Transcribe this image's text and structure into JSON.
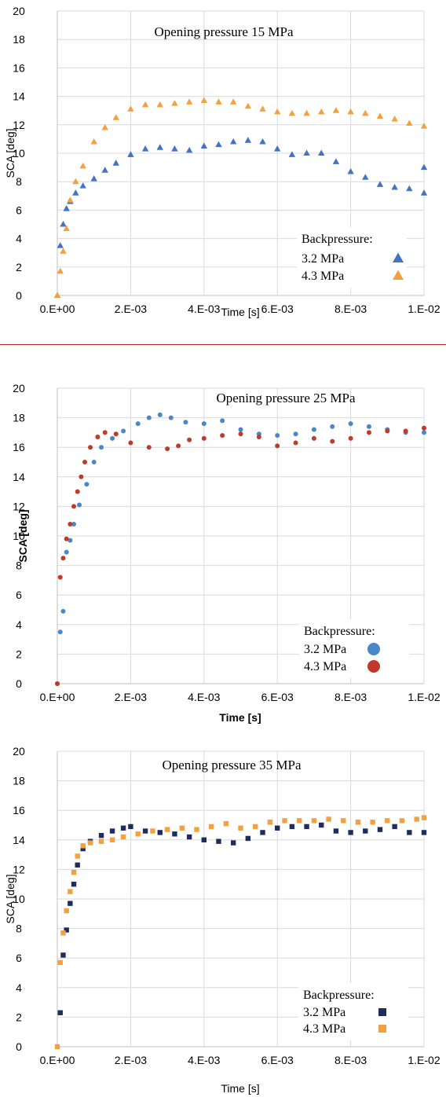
{
  "chart_data": [
    {
      "type": "scatter",
      "title": "Opening pressure 15 MPa",
      "xlabel": "Time [s]",
      "ylabel": "SCA [deg]",
      "label_bold": false,
      "marker": "triangle",
      "xlim": [
        0,
        0.01
      ],
      "ylim": [
        0,
        20
      ],
      "x_ticks": [
        "0.E+00",
        "2.E-03",
        "4.E-03",
        "6.E-03",
        "8.E-03",
        "1.E-02"
      ],
      "y_ticks": [
        "0",
        "2",
        "4",
        "6",
        "8",
        "10",
        "12",
        "14",
        "16",
        "18",
        "20"
      ],
      "grid": true,
      "legend": {
        "title": "Backpressure:",
        "placement": "bottom-right"
      },
      "series": [
        {
          "name": "3.2 MPa",
          "color": "#4472C4",
          "points": [
            [
              0,
              0
            ],
            [
              8e-05,
              3.5
            ],
            [
              0.00016,
              5.0
            ],
            [
              0.00025,
              6.1
            ],
            [
              0.00035,
              6.6
            ],
            [
              0.0005,
              7.2
            ],
            [
              0.0007,
              7.7
            ],
            [
              0.001,
              8.2
            ],
            [
              0.0013,
              8.8
            ],
            [
              0.0016,
              9.3
            ],
            [
              0.002,
              9.9
            ],
            [
              0.0024,
              10.3
            ],
            [
              0.0028,
              10.4
            ],
            [
              0.0032,
              10.3
            ],
            [
              0.0036,
              10.2
            ],
            [
              0.004,
              10.5
            ],
            [
              0.0044,
              10.6
            ],
            [
              0.0048,
              10.8
            ],
            [
              0.0052,
              10.9
            ],
            [
              0.0056,
              10.8
            ],
            [
              0.006,
              10.3
            ],
            [
              0.0064,
              9.9
            ],
            [
              0.0068,
              10.0
            ],
            [
              0.0072,
              10.0
            ],
            [
              0.0076,
              9.4
            ],
            [
              0.008,
              8.7
            ],
            [
              0.0084,
              8.3
            ],
            [
              0.0088,
              7.8
            ],
            [
              0.0092,
              7.6
            ],
            [
              0.0096,
              7.5
            ],
            [
              0.01,
              7.2
            ],
            [
              0.01,
              9.0
            ]
          ]
        },
        {
          "name": "4.3 MPa",
          "color": "#F4A040",
          "points": [
            [
              0,
              0
            ],
            [
              8e-05,
              1.7
            ],
            [
              0.00016,
              3.1
            ],
            [
              0.00025,
              4.7
            ],
            [
              0.00035,
              6.7
            ],
            [
              0.0005,
              8.0
            ],
            [
              0.0007,
              9.1
            ],
            [
              0.001,
              10.8
            ],
            [
              0.0013,
              11.8
            ],
            [
              0.0016,
              12.5
            ],
            [
              0.002,
              13.1
            ],
            [
              0.0024,
              13.4
            ],
            [
              0.0028,
              13.4
            ],
            [
              0.0032,
              13.5
            ],
            [
              0.0036,
              13.6
            ],
            [
              0.004,
              13.7
            ],
            [
              0.0044,
              13.6
            ],
            [
              0.0048,
              13.6
            ],
            [
              0.0052,
              13.3
            ],
            [
              0.0056,
              13.1
            ],
            [
              0.006,
              12.9
            ],
            [
              0.0064,
              12.8
            ],
            [
              0.0068,
              12.8
            ],
            [
              0.0072,
              12.9
            ],
            [
              0.0076,
              13.0
            ],
            [
              0.008,
              12.9
            ],
            [
              0.0084,
              12.8
            ],
            [
              0.0088,
              12.6
            ],
            [
              0.0092,
              12.4
            ],
            [
              0.0096,
              12.1
            ],
            [
              0.01,
              11.9
            ]
          ]
        }
      ]
    },
    {
      "type": "scatter",
      "title": "Opening pressure 25 MPa",
      "xlabel": "Time [s]",
      "ylabel": "SCA [deg]",
      "label_bold": true,
      "marker": "circle",
      "xlim": [
        0,
        0.01
      ],
      "ylim": [
        0,
        20
      ],
      "x_ticks": [
        "0.E+00",
        "2.E-03",
        "4.E-03",
        "6.E-03",
        "8.E-03",
        "1.E-02"
      ],
      "y_ticks": [
        "0",
        "2",
        "4",
        "6",
        "8",
        "10",
        "12",
        "14",
        "16",
        "18",
        "20"
      ],
      "grid": true,
      "legend": {
        "title": "Backpressure:",
        "placement": "bottom-right"
      },
      "series": [
        {
          "name": "3.2 MPa",
          "color": "#4A86C8",
          "points": [
            [
              0,
              0
            ],
            [
              8e-05,
              3.5
            ],
            [
              0.00016,
              4.9
            ],
            [
              0.00025,
              8.9
            ],
            [
              0.00035,
              9.7
            ],
            [
              0.00045,
              10.8
            ],
            [
              0.0006,
              12.1
            ],
            [
              0.0008,
              13.5
            ],
            [
              0.001,
              15.0
            ],
            [
              0.0012,
              16.0
            ],
            [
              0.0015,
              16.6
            ],
            [
              0.0018,
              17.1
            ],
            [
              0.0022,
              17.6
            ],
            [
              0.0025,
              18.0
            ],
            [
              0.0028,
              18.2
            ],
            [
              0.0031,
              18.0
            ],
            [
              0.0035,
              17.7
            ],
            [
              0.004,
              17.6
            ],
            [
              0.0045,
              17.8
            ],
            [
              0.005,
              17.2
            ],
            [
              0.0055,
              16.9
            ],
            [
              0.006,
              16.8
            ],
            [
              0.0065,
              16.9
            ],
            [
              0.007,
              17.2
            ],
            [
              0.0075,
              17.4
            ],
            [
              0.008,
              17.6
            ],
            [
              0.0085,
              17.4
            ],
            [
              0.009,
              17.2
            ],
            [
              0.0095,
              17.0
            ],
            [
              0.01,
              17.0
            ]
          ]
        },
        {
          "name": "4.3 MPa",
          "color": "#C0392B",
          "points": [
            [
              0,
              0
            ],
            [
              8e-05,
              7.2
            ],
            [
              0.00016,
              8.5
            ],
            [
              0.00025,
              9.8
            ],
            [
              0.00035,
              10.8
            ],
            [
              0.00045,
              12.0
            ],
            [
              0.00055,
              13.0
            ],
            [
              0.00065,
              14.0
            ],
            [
              0.00075,
              15.0
            ],
            [
              0.0009,
              16.0
            ],
            [
              0.0011,
              16.7
            ],
            [
              0.0013,
              17.0
            ],
            [
              0.0016,
              16.9
            ],
            [
              0.002,
              16.3
            ],
            [
              0.0025,
              16.0
            ],
            [
              0.003,
              15.9
            ],
            [
              0.0033,
              16.1
            ],
            [
              0.0036,
              16.5
            ],
            [
              0.004,
              16.6
            ],
            [
              0.0045,
              16.8
            ],
            [
              0.005,
              16.9
            ],
            [
              0.0055,
              16.7
            ],
            [
              0.006,
              16.1
            ],
            [
              0.0065,
              16.3
            ],
            [
              0.007,
              16.6
            ],
            [
              0.0075,
              16.4
            ],
            [
              0.008,
              16.6
            ],
            [
              0.0085,
              17.0
            ],
            [
              0.009,
              17.1
            ],
            [
              0.0095,
              17.1
            ],
            [
              0.01,
              17.3
            ]
          ]
        }
      ]
    },
    {
      "type": "scatter",
      "title": "Opening pressure 35 MPa",
      "xlabel": "Time [s]",
      "ylabel": "SCA [deg]",
      "label_bold": false,
      "marker": "square",
      "xlim": [
        0,
        0.01
      ],
      "ylim": [
        0,
        20
      ],
      "x_ticks": [
        "0.E+00",
        "2.E-03",
        "4.E-03",
        "6.E-03",
        "8.E-03",
        "1.E-02"
      ],
      "y_ticks": [
        "0",
        "2",
        "4",
        "6",
        "8",
        "10",
        "12",
        "14",
        "16",
        "18",
        "20"
      ],
      "grid": true,
      "legend": {
        "title": "Backpressure:",
        "placement": "bottom-right"
      },
      "series": [
        {
          "name": "3.2 MPa",
          "color": "#1F2D5C",
          "points": [
            [
              8e-05,
              2.3
            ],
            [
              0.00016,
              6.2
            ],
            [
              0.00025,
              7.9
            ],
            [
              0.00035,
              9.7
            ],
            [
              0.00045,
              11.0
            ],
            [
              0.00055,
              12.3
            ],
            [
              0.0007,
              13.4
            ],
            [
              0.0009,
              13.9
            ],
            [
              0.0012,
              14.3
            ],
            [
              0.0015,
              14.6
            ],
            [
              0.0018,
              14.8
            ],
            [
              0.002,
              14.9
            ],
            [
              0.0024,
              14.6
            ],
            [
              0.0028,
              14.5
            ],
            [
              0.0032,
              14.4
            ],
            [
              0.0036,
              14.2
            ],
            [
              0.004,
              14.0
            ],
            [
              0.0044,
              13.9
            ],
            [
              0.0048,
              13.8
            ],
            [
              0.0052,
              14.1
            ],
            [
              0.0056,
              14.5
            ],
            [
              0.006,
              14.8
            ],
            [
              0.0064,
              14.9
            ],
            [
              0.0068,
              14.9
            ],
            [
              0.0072,
              15.0
            ],
            [
              0.0076,
              14.6
            ],
            [
              0.008,
              14.5
            ],
            [
              0.0084,
              14.6
            ],
            [
              0.0088,
              14.7
            ],
            [
              0.0092,
              14.9
            ],
            [
              0.0096,
              14.5
            ],
            [
              0.01,
              14.5
            ]
          ]
        },
        {
          "name": "4.3 MPa",
          "color": "#F4A040",
          "points": [
            [
              0,
              0
            ],
            [
              8e-05,
              5.7
            ],
            [
              0.00016,
              7.7
            ],
            [
              0.00025,
              9.2
            ],
            [
              0.00035,
              10.5
            ],
            [
              0.00045,
              11.8
            ],
            [
              0.00055,
              12.9
            ],
            [
              0.0007,
              13.6
            ],
            [
              0.0009,
              13.8
            ],
            [
              0.0012,
              13.9
            ],
            [
              0.0015,
              14.0
            ],
            [
              0.0018,
              14.2
            ],
            [
              0.0022,
              14.4
            ],
            [
              0.0026,
              14.6
            ],
            [
              0.003,
              14.7
            ],
            [
              0.0034,
              14.8
            ],
            [
              0.0038,
              14.7
            ],
            [
              0.0042,
              14.9
            ],
            [
              0.0046,
              15.1
            ],
            [
              0.005,
              14.8
            ],
            [
              0.0054,
              14.9
            ],
            [
              0.0058,
              15.2
            ],
            [
              0.0062,
              15.3
            ],
            [
              0.0066,
              15.3
            ],
            [
              0.007,
              15.3
            ],
            [
              0.0074,
              15.4
            ],
            [
              0.0078,
              15.3
            ],
            [
              0.0082,
              15.2
            ],
            [
              0.0086,
              15.2
            ],
            [
              0.009,
              15.3
            ],
            [
              0.0094,
              15.3
            ],
            [
              0.0098,
              15.4
            ],
            [
              0.01,
              15.5
            ]
          ]
        }
      ]
    }
  ]
}
